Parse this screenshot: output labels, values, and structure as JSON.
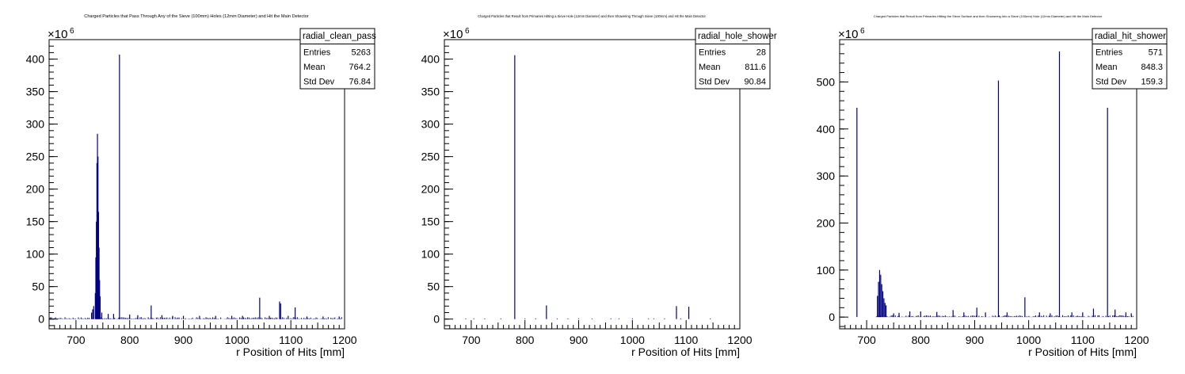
{
  "chart_data": [
    {
      "type": "bar",
      "title": "Charged Particles that Pass Through Any of the Sieve (100mm) Holes (12mm Diameter) and Hit the Main Detector",
      "xlabel": "r Position of Hits [mm]",
      "ylabel": "",
      "y_multiplier": "×10",
      "y_multiplier_exp": "6",
      "xlim": [
        650,
        1200
      ],
      "ylim": [
        -15,
        430
      ],
      "xticks": [
        700,
        800,
        900,
        1000,
        1100,
        1200
      ],
      "yticks": [
        0,
        50,
        100,
        150,
        200,
        250,
        300,
        350,
        400
      ],
      "color": "#000080",
      "stats": {
        "name": "radial_clean_pass",
        "rows": [
          {
            "label": "Entries",
            "value": "5263"
          },
          {
            "label": "Mean",
            "value": "764.2"
          },
          {
            "label": "Std Dev",
            "value": "76.84"
          }
        ]
      },
      "spikes": [
        {
          "x": 781,
          "y": 407
        },
        {
          "x": 740,
          "y": 285
        },
        {
          "x": 741,
          "y": 250
        },
        {
          "x": 739,
          "y": 240
        },
        {
          "x": 742,
          "y": 165
        },
        {
          "x": 738,
          "y": 150
        },
        {
          "x": 743,
          "y": 110
        },
        {
          "x": 737,
          "y": 95
        },
        {
          "x": 744,
          "y": 60
        },
        {
          "x": 736,
          "y": 40
        },
        {
          "x": 745,
          "y": 35
        },
        {
          "x": 1042,
          "y": 33
        },
        {
          "x": 1079,
          "y": 27
        },
        {
          "x": 1081,
          "y": 24
        },
        {
          "x": 840,
          "y": 21
        },
        {
          "x": 1108,
          "y": 18
        },
        {
          "x": 733,
          "y": 20
        },
        {
          "x": 731,
          "y": 15
        },
        {
          "x": 729,
          "y": 10
        },
        {
          "x": 748,
          "y": 10
        },
        {
          "x": 760,
          "y": 8
        },
        {
          "x": 770,
          "y": 8
        },
        {
          "x": 800,
          "y": 7
        },
        {
          "x": 815,
          "y": 6
        },
        {
          "x": 860,
          "y": 6
        },
        {
          "x": 880,
          "y": 5
        },
        {
          "x": 900,
          "y": 5
        },
        {
          "x": 930,
          "y": 5
        },
        {
          "x": 960,
          "y": 5
        },
        {
          "x": 990,
          "y": 5
        },
        {
          "x": 1010,
          "y": 5
        },
        {
          "x": 1060,
          "y": 5
        },
        {
          "x": 1095,
          "y": 5
        },
        {
          "x": 1130,
          "y": 4
        },
        {
          "x": 1160,
          "y": 4
        },
        {
          "x": 1190,
          "y": 4
        }
      ],
      "baseline": 3
    },
    {
      "type": "bar",
      "title": "Charged Particles that Result from Primaries Hitting a Sieve Hole (12mm Diameter) and then Showering Through Sieve (100mm) and Hit the Main Detector",
      "xlabel": "r Position of Hits [mm]",
      "ylabel": "",
      "y_multiplier": "×10",
      "y_multiplier_exp": "6",
      "xlim": [
        650,
        1200
      ],
      "ylim": [
        -15,
        430
      ],
      "xticks": [
        700,
        800,
        900,
        1000,
        1100,
        1200
      ],
      "yticks": [
        0,
        50,
        100,
        150,
        200,
        250,
        300,
        350,
        400
      ],
      "color": "#000080",
      "stats": {
        "name": "radial_hole_shower",
        "rows": [
          {
            "label": "Entries",
            "value": "28"
          },
          {
            "label": "Mean",
            "value": "811.6"
          },
          {
            "label": "Std Dev",
            "value": "90.84"
          }
        ]
      },
      "spikes": [
        {
          "x": 781,
          "y": 406
        },
        {
          "x": 840,
          "y": 21
        },
        {
          "x": 1082,
          "y": 20
        },
        {
          "x": 1105,
          "y": 19
        },
        {
          "x": 690,
          "y": 1
        },
        {
          "x": 705,
          "y": 1
        },
        {
          "x": 725,
          "y": 1
        },
        {
          "x": 755,
          "y": 1
        },
        {
          "x": 800,
          "y": 1
        },
        {
          "x": 820,
          "y": 1
        },
        {
          "x": 860,
          "y": 1
        },
        {
          "x": 880,
          "y": 1
        },
        {
          "x": 900,
          "y": 1
        },
        {
          "x": 925,
          "y": 1
        },
        {
          "x": 960,
          "y": 1
        },
        {
          "x": 975,
          "y": 1
        },
        {
          "x": 1000,
          "y": 1
        },
        {
          "x": 1030,
          "y": 1
        },
        {
          "x": 1040,
          "y": 1
        },
        {
          "x": 1060,
          "y": 1
        },
        {
          "x": 1090,
          "y": 1
        },
        {
          "x": 1145,
          "y": 1
        }
      ],
      "baseline": 0
    },
    {
      "type": "bar",
      "title": "Charged Particles that Result from Primaries Hitting the Sieve Surface and then Showering Into a Sieve (100mm) Hole (12mm Diameter) and Hit the Main Detector",
      "xlabel": "r Position of Hits [mm]",
      "ylabel": "",
      "y_multiplier": "×10",
      "y_multiplier_exp": "6",
      "xlim": [
        650,
        1200
      ],
      "ylim": [
        -25,
        590
      ],
      "xticks": [
        700,
        800,
        900,
        1000,
        1100,
        1200
      ],
      "yticks": [
        0,
        100,
        200,
        300,
        400,
        500
      ],
      "color": "#000080",
      "stats": {
        "name": "radial_hit_shower",
        "rows": [
          {
            "label": "Entries",
            "value": "571"
          },
          {
            "label": "Mean",
            "value": "848.3"
          },
          {
            "label": "Std Dev",
            "value": "159.3"
          }
        ]
      },
      "spikes": [
        {
          "x": 1057,
          "y": 565
        },
        {
          "x": 944,
          "y": 503
        },
        {
          "x": 682,
          "y": 445
        },
        {
          "x": 1146,
          "y": 445
        },
        {
          "x": 724,
          "y": 100
        },
        {
          "x": 726,
          "y": 90
        },
        {
          "x": 722,
          "y": 75
        },
        {
          "x": 728,
          "y": 70
        },
        {
          "x": 730,
          "y": 55
        },
        {
          "x": 720,
          "y": 45
        },
        {
          "x": 732,
          "y": 40
        },
        {
          "x": 993,
          "y": 42
        },
        {
          "x": 734,
          "y": 30
        },
        {
          "x": 736,
          "y": 25
        },
        {
          "x": 904,
          "y": 20
        },
        {
          "x": 1120,
          "y": 18
        },
        {
          "x": 1160,
          "y": 16
        },
        {
          "x": 860,
          "y": 15
        },
        {
          "x": 780,
          "y": 12
        },
        {
          "x": 800,
          "y": 12
        },
        {
          "x": 830,
          "y": 11
        },
        {
          "x": 880,
          "y": 10
        },
        {
          "x": 920,
          "y": 10
        },
        {
          "x": 960,
          "y": 10
        },
        {
          "x": 1020,
          "y": 10
        },
        {
          "x": 1080,
          "y": 10
        },
        {
          "x": 1100,
          "y": 10
        },
        {
          "x": 1180,
          "y": 10
        },
        {
          "x": 760,
          "y": 9
        },
        {
          "x": 750,
          "y": 8
        },
        {
          "x": 1040,
          "y": 8
        },
        {
          "x": 1190,
          "y": 8
        }
      ],
      "baseline": 4
    }
  ]
}
